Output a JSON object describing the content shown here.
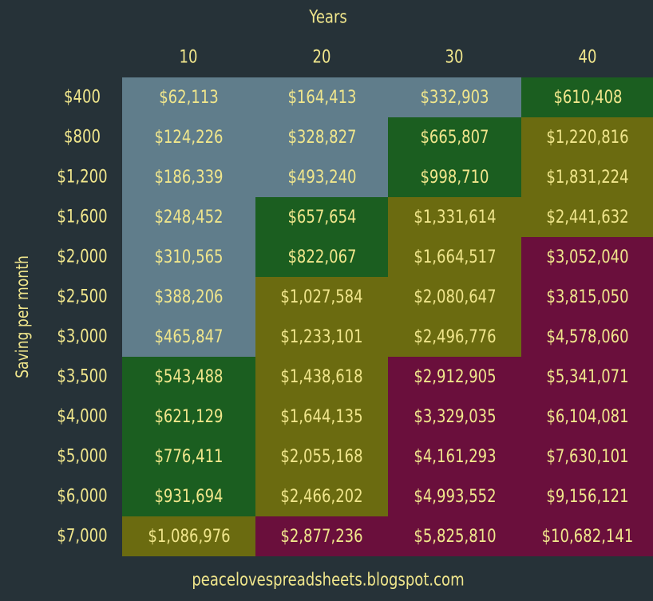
{
  "colors": {
    "background": "#263238",
    "text": "#f0e68c",
    "low": "#607d8b",
    "mid": "#1b5e20",
    "high": "#6b6b10",
    "top": "#6a0f3c"
  },
  "chart_data": {
    "type": "heatmap",
    "title": "Years",
    "xlabel": "Years",
    "ylabel": "Saving per month",
    "source": "peacelovespreadsheets.blogspot.com",
    "columns": [
      "10",
      "20",
      "30",
      "40"
    ],
    "rows": [
      "$400",
      "$800",
      "$1,200",
      "$1,600",
      "$2,000",
      "$2,500",
      "$3,000",
      "$3,500",
      "$4,000",
      "$5,000",
      "$6,000",
      "$7,000"
    ],
    "values": [
      [
        "$62,113",
        "$164,413",
        "$332,903",
        "$610,408"
      ],
      [
        "$124,226",
        "$328,827",
        "$665,807",
        "$1,220,816"
      ],
      [
        "$186,339",
        "$493,240",
        "$998,710",
        "$1,831,224"
      ],
      [
        "$248,452",
        "$657,654",
        "$1,331,614",
        "$2,441,632"
      ],
      [
        "$310,565",
        "$822,067",
        "$1,664,517",
        "$3,052,040"
      ],
      [
        "$388,206",
        "$1,027,584",
        "$2,080,647",
        "$3,815,050"
      ],
      [
        "$465,847",
        "$1,233,101",
        "$2,496,776",
        "$4,578,060"
      ],
      [
        "$543,488",
        "$1,438,618",
        "$2,912,905",
        "$5,341,071"
      ],
      [
        "$621,129",
        "$1,644,135",
        "$3,329,035",
        "$6,104,081"
      ],
      [
        "$776,411",
        "$2,055,168",
        "$4,161,293",
        "$7,630,101"
      ],
      [
        "$931,694",
        "$2,466,202",
        "$4,993,552",
        "$9,156,121"
      ],
      [
        "$1,086,976",
        "$2,877,236",
        "$5,825,810",
        "$10,682,141"
      ]
    ],
    "color_bands": [
      [
        "low",
        "low",
        "low",
        "mid"
      ],
      [
        "low",
        "low",
        "mid",
        "high"
      ],
      [
        "low",
        "low",
        "mid",
        "high"
      ],
      [
        "low",
        "mid",
        "high",
        "high"
      ],
      [
        "low",
        "mid",
        "high",
        "top"
      ],
      [
        "low",
        "high",
        "high",
        "top"
      ],
      [
        "low",
        "high",
        "high",
        "top"
      ],
      [
        "mid",
        "high",
        "top",
        "top"
      ],
      [
        "mid",
        "high",
        "top",
        "top"
      ],
      [
        "mid",
        "high",
        "top",
        "top"
      ],
      [
        "mid",
        "high",
        "top",
        "top"
      ],
      [
        "high",
        "top",
        "top",
        "top"
      ]
    ]
  }
}
